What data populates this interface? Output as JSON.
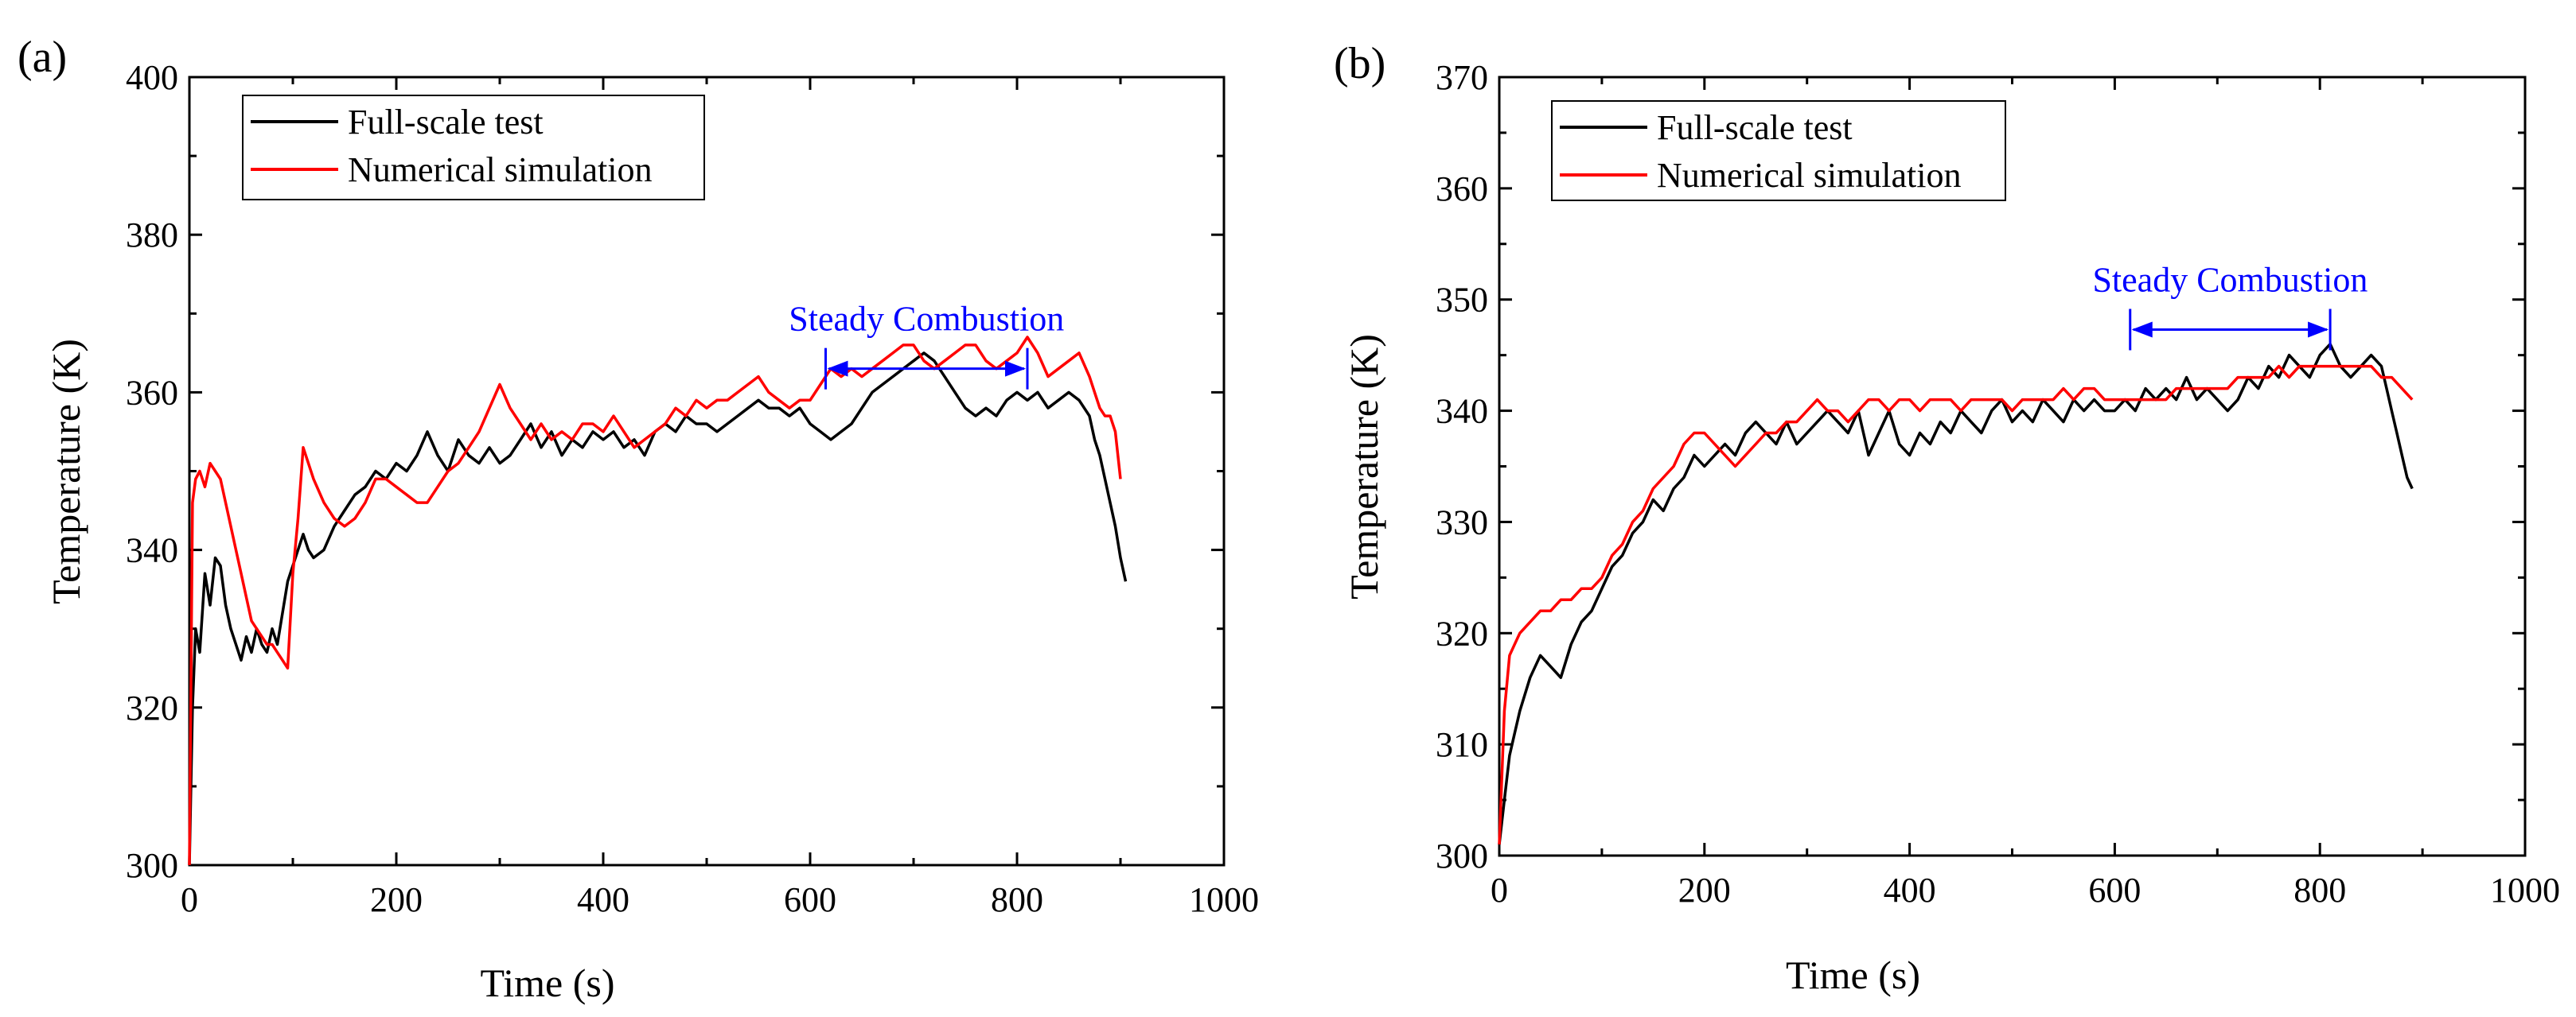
{
  "chart_data": [
    {
      "type": "line",
      "panel_label": "(a)",
      "xlabel": "Time (s)",
      "ylabel": "Temperature (K)",
      "xlim": [
        0,
        1000
      ],
      "ylim": [
        300,
        400
      ],
      "xticks": [
        0,
        200,
        400,
        600,
        800,
        1000
      ],
      "yticks": [
        300,
        320,
        340,
        360,
        380,
        400
      ],
      "legend_position": "top-left",
      "annotation": {
        "text": "Steady Combustion",
        "x_start": 615,
        "x_end": 810,
        "y": 363
      },
      "series": [
        {
          "name": "Full-scale test",
          "color": "#000000",
          "x": [
            0,
            3,
            6,
            10,
            15,
            20,
            25,
            30,
            35,
            40,
            45,
            50,
            55,
            60,
            65,
            70,
            75,
            80,
            85,
            90,
            95,
            100,
            105,
            110,
            115,
            120,
            130,
            140,
            150,
            160,
            170,
            180,
            190,
            200,
            210,
            220,
            230,
            240,
            250,
            260,
            270,
            280,
            290,
            300,
            310,
            320,
            330,
            340,
            350,
            360,
            370,
            380,
            390,
            400,
            410,
            420,
            430,
            440,
            450,
            460,
            470,
            480,
            490,
            500,
            510,
            520,
            530,
            540,
            550,
            560,
            570,
            580,
            590,
            600,
            610,
            620,
            630,
            640,
            650,
            660,
            670,
            680,
            690,
            700,
            710,
            720,
            730,
            740,
            750,
            760,
            770,
            780,
            790,
            800,
            810,
            820,
            830,
            840,
            850,
            860,
            870,
            875,
            880,
            885,
            890,
            895,
            900,
            905
          ],
          "y": [
            300,
            320,
            330,
            327,
            337,
            333,
            339,
            338,
            333,
            330,
            328,
            326,
            329,
            327,
            330,
            328,
            327,
            330,
            328,
            332,
            336,
            338,
            340,
            342,
            340,
            339,
            340,
            343,
            345,
            347,
            348,
            350,
            349,
            351,
            350,
            352,
            355,
            352,
            350,
            354,
            352,
            351,
            353,
            351,
            352,
            354,
            356,
            353,
            355,
            352,
            354,
            353,
            355,
            354,
            355,
            353,
            354,
            352,
            355,
            356,
            355,
            357,
            356,
            356,
            355,
            356,
            357,
            358,
            359,
            358,
            358,
            357,
            358,
            356,
            355,
            354,
            355,
            356,
            358,
            360,
            361,
            362,
            363,
            364,
            365,
            364,
            362,
            360,
            358,
            357,
            358,
            357,
            359,
            360,
            359,
            360,
            358,
            359,
            360,
            359,
            357,
            354,
            352,
            349,
            346,
            343,
            339,
            336
          ]
        },
        {
          "name": "Numerical simulation",
          "color": "#ff0000",
          "x": [
            0,
            3,
            6,
            10,
            15,
            20,
            25,
            30,
            35,
            40,
            45,
            50,
            55,
            60,
            65,
            70,
            75,
            80,
            85,
            90,
            95,
            100,
            105,
            110,
            115,
            120,
            130,
            140,
            150,
            160,
            170,
            180,
            190,
            200,
            210,
            220,
            230,
            240,
            250,
            260,
            270,
            280,
            290,
            300,
            310,
            320,
            330,
            340,
            350,
            360,
            370,
            380,
            390,
            400,
            410,
            420,
            430,
            440,
            450,
            460,
            470,
            480,
            490,
            500,
            510,
            520,
            530,
            540,
            550,
            560,
            570,
            580,
            590,
            600,
            610,
            620,
            630,
            640,
            650,
            660,
            670,
            680,
            690,
            700,
            710,
            720,
            730,
            740,
            750,
            760,
            770,
            780,
            790,
            800,
            810,
            820,
            830,
            840,
            850,
            860,
            870,
            875,
            880,
            885,
            890,
            895,
            900
          ],
          "y": [
            300,
            346,
            349,
            350,
            348,
            351,
            350,
            349,
            346,
            343,
            340,
            337,
            334,
            331,
            330,
            329,
            328,
            328,
            327,
            326,
            325,
            337,
            344,
            353,
            351,
            349,
            346,
            344,
            343,
            344,
            346,
            349,
            349,
            348,
            347,
            346,
            346,
            348,
            350,
            351,
            353,
            355,
            358,
            361,
            358,
            356,
            354,
            356,
            354,
            355,
            354,
            356,
            356,
            355,
            357,
            355,
            353,
            354,
            355,
            356,
            358,
            357,
            359,
            358,
            359,
            359,
            360,
            361,
            362,
            360,
            359,
            358,
            359,
            359,
            361,
            363,
            362,
            363,
            362,
            363,
            364,
            365,
            366,
            366,
            364,
            363,
            364,
            365,
            366,
            366,
            364,
            363,
            364,
            365,
            367,
            365,
            362,
            363,
            364,
            365,
            362,
            360,
            358,
            357,
            357,
            355,
            349
          ]
        }
      ]
    },
    {
      "type": "line",
      "panel_label": "(b)",
      "xlabel": "Time (s)",
      "ylabel": "Temperature (K)",
      "xlim": [
        0,
        1000
      ],
      "ylim": [
        300,
        370
      ],
      "xticks": [
        0,
        200,
        400,
        600,
        800,
        1000
      ],
      "yticks": [
        300,
        310,
        320,
        330,
        340,
        350,
        360,
        370
      ],
      "legend_position": "top-left",
      "annotation": {
        "text": "Steady Combustion",
        "x_start": 615,
        "x_end": 810,
        "y": 347.3
      },
      "series": [
        {
          "name": "Full-scale test",
          "color": "#000000",
          "x": [
            0,
            5,
            10,
            15,
            20,
            30,
            40,
            50,
            60,
            70,
            80,
            90,
            100,
            110,
            120,
            130,
            140,
            150,
            160,
            170,
            180,
            190,
            200,
            210,
            220,
            230,
            240,
            250,
            260,
            270,
            280,
            290,
            300,
            310,
            320,
            330,
            340,
            350,
            360,
            370,
            380,
            390,
            400,
            410,
            420,
            430,
            440,
            450,
            460,
            470,
            480,
            490,
            500,
            510,
            520,
            530,
            540,
            550,
            560,
            570,
            580,
            590,
            600,
            610,
            620,
            630,
            640,
            650,
            660,
            670,
            680,
            690,
            700,
            710,
            720,
            730,
            740,
            750,
            760,
            770,
            780,
            790,
            800,
            810,
            820,
            830,
            840,
            850,
            860,
            865,
            870,
            875,
            880,
            885,
            890
          ],
          "y": [
            301,
            305,
            309,
            311,
            313,
            316,
            318,
            317,
            316,
            319,
            321,
            322,
            324,
            326,
            327,
            329,
            330,
            332,
            331,
            333,
            334,
            336,
            335,
            336,
            337,
            336,
            338,
            339,
            338,
            337,
            339,
            337,
            338,
            339,
            340,
            339,
            338,
            340,
            336,
            338,
            340,
            337,
            336,
            338,
            337,
            339,
            338,
            340,
            339,
            338,
            340,
            341,
            339,
            340,
            339,
            341,
            340,
            339,
            341,
            340,
            341,
            340,
            340,
            341,
            340,
            342,
            341,
            342,
            341,
            343,
            341,
            342,
            341,
            340,
            341,
            343,
            342,
            344,
            343,
            345,
            344,
            343,
            345,
            346,
            344,
            343,
            344,
            345,
            344,
            342,
            340,
            338,
            336,
            334,
            333
          ]
        },
        {
          "name": "Numerical simulation",
          "color": "#ff0000",
          "x": [
            0,
            5,
            10,
            15,
            20,
            30,
            40,
            50,
            60,
            70,
            80,
            90,
            100,
            110,
            120,
            130,
            140,
            150,
            160,
            170,
            180,
            190,
            200,
            210,
            220,
            230,
            240,
            250,
            260,
            270,
            280,
            290,
            300,
            310,
            320,
            330,
            340,
            350,
            360,
            370,
            380,
            390,
            400,
            410,
            420,
            430,
            440,
            450,
            460,
            470,
            480,
            490,
            500,
            510,
            520,
            530,
            540,
            550,
            560,
            570,
            580,
            590,
            600,
            610,
            620,
            630,
            640,
            650,
            660,
            670,
            680,
            690,
            700,
            710,
            720,
            730,
            740,
            750,
            760,
            770,
            780,
            790,
            800,
            810,
            820,
            830,
            840,
            850,
            860,
            870,
            880,
            890
          ],
          "y": [
            301,
            313,
            318,
            319,
            320,
            321,
            322,
            322,
            323,
            323,
            324,
            324,
            325,
            327,
            328,
            330,
            331,
            333,
            334,
            335,
            337,
            338,
            338,
            337,
            336,
            335,
            336,
            337,
            338,
            338,
            339,
            339,
            340,
            341,
            340,
            340,
            339,
            340,
            341,
            341,
            340,
            341,
            341,
            340,
            341,
            341,
            341,
            340,
            341,
            341,
            341,
            341,
            340,
            341,
            341,
            341,
            341,
            342,
            341,
            342,
            342,
            341,
            341,
            341,
            341,
            341,
            341,
            341,
            342,
            342,
            342,
            342,
            342,
            342,
            343,
            343,
            343,
            343,
            344,
            343,
            344,
            344,
            344,
            344,
            344,
            344,
            344,
            344,
            343,
            343,
            342,
            341
          ]
        }
      ]
    }
  ]
}
